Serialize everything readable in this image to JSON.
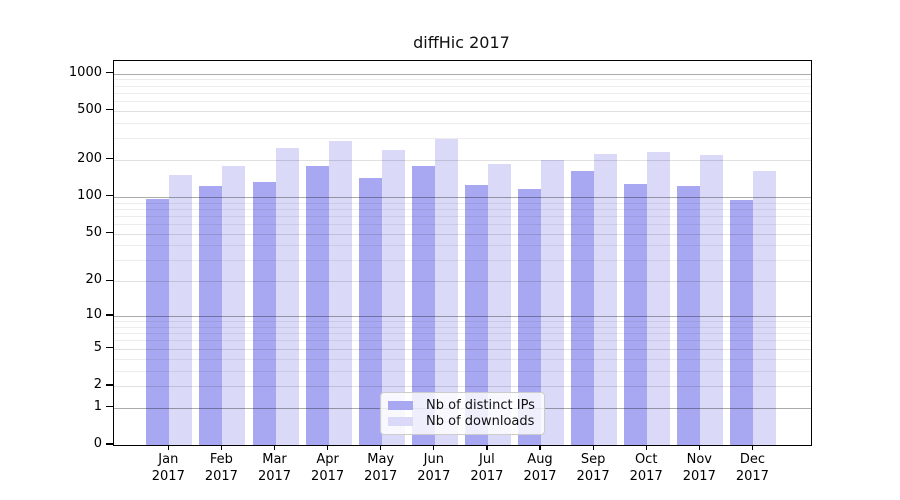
{
  "title": "diffHic 2017",
  "legend": {
    "items": [
      {
        "label": "Nb of distinct IPs",
        "color": "#a8a8f2"
      },
      {
        "label": "Nb of downloads",
        "color": "#dadaf8"
      }
    ]
  },
  "y_axis_tick_labels": [
    "0",
    "1",
    "2",
    "5",
    "10",
    "20",
    "50",
    "100",
    "200",
    "500",
    "1000"
  ],
  "chart_data": {
    "type": "bar",
    "title": "diffHic 2017",
    "xlabel": "",
    "ylabel": "",
    "categories": [
      "Jan 2017",
      "Feb 2017",
      "Mar 2017",
      "Apr 2017",
      "May 2017",
      "Jun 2017",
      "Jul 2017",
      "Aug 2017",
      "Sep 2017",
      "Oct 2017",
      "Nov 2017",
      "Dec 2017"
    ],
    "series": [
      {
        "name": "Nb of distinct IPs",
        "color": "#a8a8f2",
        "values": [
          96,
          122,
          132,
          178,
          143,
          177,
          124,
          117,
          162,
          128,
          122,
          94
        ]
      },
      {
        "name": "Nb of downloads",
        "color": "#dadaf8",
        "values": [
          152,
          177,
          251,
          284,
          240,
          293,
          186,
          198,
          222,
          233,
          220,
          162
        ]
      }
    ],
    "y_scale": "log10(value+1)",
    "y_ticks": [
      0,
      1,
      2,
      5,
      10,
      20,
      50,
      100,
      200,
      500,
      1000
    ],
    "ylim": [
      0,
      1260
    ],
    "grid": true,
    "grid_over_bars": true,
    "legend_position": "lower center"
  }
}
